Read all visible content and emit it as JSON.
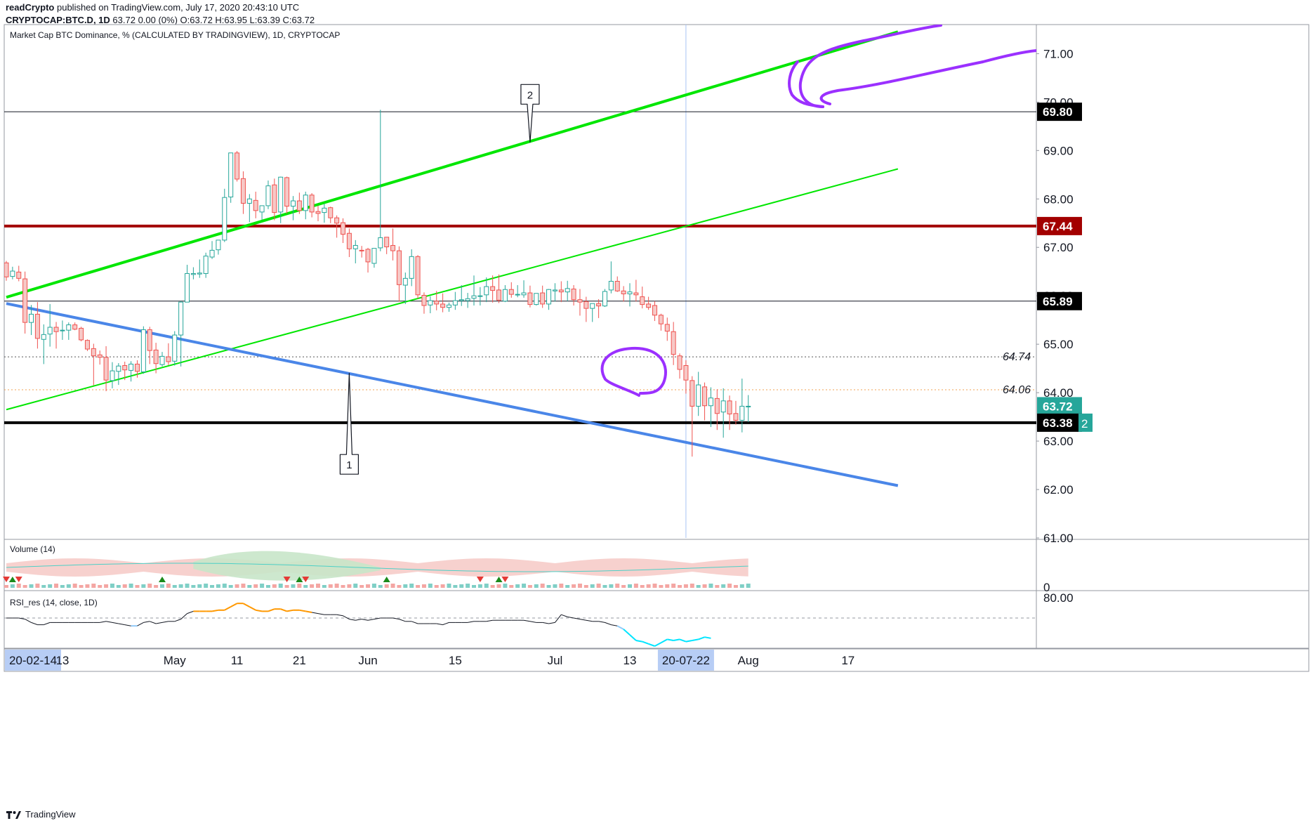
{
  "header": {
    "line1_author": "readCrypto",
    "line1_rest": "published on TradingView.com, July 17, 2020 20:43:10 UTC",
    "line2_symbol": "CRYPTOCAP:BTC.D, 1D",
    "line2_quote": "63.72 0.00 (0%) O:63.72 H:63.95 L:63.39 C:63.72"
  },
  "footer": {
    "brand": "TradingView",
    "icon": "tradingview-logo-icon"
  },
  "colors": {
    "up": "#26a69a",
    "down": "#ef5350",
    "green_line": "#00e600",
    "blue_line": "#4a86e8",
    "red_level": "#a30000",
    "purple": "#9b30ff",
    "rsi_line": "#131722",
    "rsi_over": "#ff9800",
    "rsi_under": "#00e5ff"
  },
  "chart_data": {
    "type": "candlestick",
    "title": "Market Cap BTC Dominance, % (CALCULATED BY TRADINGVIEW), 1D, CRYPTOCAP",
    "ylim": [
      61.0,
      71.6
    ],
    "y_ticks": [
      "61.00",
      "62.00",
      "63.00",
      "64.00",
      "65.00",
      "66.00",
      "67.00",
      "68.00",
      "69.00",
      "70.00",
      "71.00"
    ],
    "x_ticks": [
      {
        "label": "20-02-14",
        "highlight": true,
        "day": 0
      },
      {
        "label": "13",
        "day": 9
      },
      {
        "label": "May",
        "day": 27
      },
      {
        "label": "11",
        "day": 37
      },
      {
        "label": "21",
        "day": 47
      },
      {
        "label": "Jun",
        "day": 58
      },
      {
        "label": "15",
        "day": 72
      },
      {
        "label": "Jul",
        "day": 88
      },
      {
        "label": "13",
        "day": 100
      },
      {
        "label": "20-07-22",
        "highlight": true,
        "day": 109
      },
      {
        "label": "Aug",
        "day": 119
      },
      {
        "label": "17",
        "day": 135
      }
    ],
    "price_labels": [
      {
        "text": "69.80",
        "value": 69.8,
        "style": "dark"
      },
      {
        "text": "67.44",
        "value": 67.44,
        "style": "red"
      },
      {
        "text": "65.89",
        "value": 65.89,
        "style": "dark"
      },
      {
        "text": "63.72",
        "value": 63.72,
        "style": "teal"
      },
      {
        "text": "63.38",
        "value": 63.38,
        "style": "dark"
      }
    ],
    "edge_label": "2",
    "plain_levels": [
      {
        "text": "64.74",
        "value": 64.74
      },
      {
        "text": "64.06",
        "value": 64.06
      }
    ],
    "horizontal_lines": [
      {
        "value": 69.8,
        "color": "#131722",
        "width": 1
      },
      {
        "value": 67.44,
        "color": "#a30000",
        "width": 4
      },
      {
        "value": 65.89,
        "color": "#131722",
        "width": 1
      },
      {
        "value": 64.74,
        "color": "#555555",
        "width": 1,
        "dash": true
      },
      {
        "value": 64.06,
        "color": "#f0a050",
        "width": 1,
        "dash": true
      },
      {
        "value": 63.38,
        "color": "#000000",
        "width": 4
      }
    ],
    "trendlines": [
      {
        "from": [
          0,
          65.97
        ],
        "to": [
          143,
          71.45
        ],
        "color": "#00e600",
        "width": 4
      },
      {
        "from": [
          0,
          63.65
        ],
        "to": [
          143,
          68.62
        ],
        "color": "#00e600",
        "width": 2
      },
      {
        "from": [
          0,
          65.84
        ],
        "to": [
          143,
          62.08
        ],
        "color": "#4a86e8",
        "width": 4
      }
    ],
    "vertical_line_day": 109,
    "callouts": [
      {
        "text": "1",
        "tip": [
          55,
          64.4
        ],
        "box": [
          55,
          62.52
        ]
      },
      {
        "text": "2",
        "tip": [
          84,
          69.17
        ],
        "box": [
          84,
          70.16
        ]
      }
    ],
    "candles": [
      {
        "o": 66.68,
        "h": 66.72,
        "l": 66.31,
        "c": 66.39
      },
      {
        "o": 66.4,
        "h": 66.6,
        "l": 66.34,
        "c": 66.51
      },
      {
        "o": 66.49,
        "h": 66.62,
        "l": 66.3,
        "c": 66.36
      },
      {
        "o": 66.35,
        "h": 66.5,
        "l": 65.22,
        "c": 65.45
      },
      {
        "o": 65.45,
        "h": 65.81,
        "l": 65.19,
        "c": 65.62
      },
      {
        "o": 65.62,
        "h": 65.87,
        "l": 64.91,
        "c": 65.12
      },
      {
        "o": 65.1,
        "h": 65.41,
        "l": 64.59,
        "c": 65.2
      },
      {
        "o": 65.21,
        "h": 65.83,
        "l": 64.95,
        "c": 65.35
      },
      {
        "o": 65.35,
        "h": 65.46,
        "l": 64.91,
        "c": 65.26
      },
      {
        "o": 65.28,
        "h": 65.49,
        "l": 65.09,
        "c": 65.29
      },
      {
        "o": 65.29,
        "h": 65.45,
        "l": 65.09,
        "c": 65.4
      },
      {
        "o": 65.4,
        "h": 65.45,
        "l": 65.29,
        "c": 65.31
      },
      {
        "o": 65.33,
        "h": 65.36,
        "l": 65.06,
        "c": 65.09
      },
      {
        "o": 65.08,
        "h": 65.1,
        "l": 64.86,
        "c": 64.9
      },
      {
        "o": 64.91,
        "h": 65.01,
        "l": 64.15,
        "c": 64.76
      },
      {
        "o": 64.78,
        "h": 64.87,
        "l": 64.58,
        "c": 64.73
      },
      {
        "o": 64.73,
        "h": 64.96,
        "l": 64.03,
        "c": 64.26
      },
      {
        "o": 64.25,
        "h": 64.63,
        "l": 64.09,
        "c": 64.45
      },
      {
        "o": 64.44,
        "h": 64.61,
        "l": 64.16,
        "c": 64.55
      },
      {
        "o": 64.56,
        "h": 64.64,
        "l": 64.26,
        "c": 64.47
      },
      {
        "o": 64.46,
        "h": 64.65,
        "l": 64.23,
        "c": 64.59
      },
      {
        "o": 64.59,
        "h": 64.67,
        "l": 64.31,
        "c": 64.44
      },
      {
        "o": 64.43,
        "h": 65.37,
        "l": 64.39,
        "c": 65.3
      },
      {
        "o": 65.3,
        "h": 65.36,
        "l": 64.59,
        "c": 64.87
      },
      {
        "o": 64.88,
        "h": 65.03,
        "l": 64.4,
        "c": 64.6
      },
      {
        "o": 64.58,
        "h": 64.84,
        "l": 64.54,
        "c": 64.75
      },
      {
        "o": 64.74,
        "h": 65.02,
        "l": 64.57,
        "c": 64.64
      },
      {
        "o": 64.65,
        "h": 65.27,
        "l": 64.56,
        "c": 65.19
      },
      {
        "o": 65.19,
        "h": 65.89,
        "l": 64.54,
        "c": 65.87
      },
      {
        "o": 65.87,
        "h": 66.64,
        "l": 65.92,
        "c": 66.46
      },
      {
        "o": 66.44,
        "h": 66.59,
        "l": 66.34,
        "c": 66.46
      },
      {
        "o": 66.45,
        "h": 66.75,
        "l": 66.37,
        "c": 66.47
      },
      {
        "o": 66.46,
        "h": 66.89,
        "l": 66.37,
        "c": 66.82
      },
      {
        "o": 66.8,
        "h": 67.13,
        "l": 66.76,
        "c": 66.94
      },
      {
        "o": 66.95,
        "h": 67.06,
        "l": 66.85,
        "c": 67.15
      },
      {
        "o": 67.15,
        "h": 68.21,
        "l": 67.11,
        "c": 68.03
      },
      {
        "o": 68.04,
        "h": 68.95,
        "l": 67.92,
        "c": 68.95
      },
      {
        "o": 68.95,
        "h": 68.99,
        "l": 68.36,
        "c": 68.41
      },
      {
        "o": 68.42,
        "h": 68.57,
        "l": 67.69,
        "c": 67.91
      },
      {
        "o": 67.91,
        "h": 68.1,
        "l": 67.52,
        "c": 68.0
      },
      {
        "o": 67.97,
        "h": 68.15,
        "l": 67.6,
        "c": 67.76
      },
      {
        "o": 67.73,
        "h": 67.82,
        "l": 67.57,
        "c": 67.86
      },
      {
        "o": 67.86,
        "h": 68.38,
        "l": 67.79,
        "c": 68.27
      },
      {
        "o": 68.29,
        "h": 68.42,
        "l": 67.56,
        "c": 67.72
      },
      {
        "o": 67.73,
        "h": 68.46,
        "l": 67.5,
        "c": 68.45
      },
      {
        "o": 68.44,
        "h": 68.46,
        "l": 67.7,
        "c": 67.85
      },
      {
        "o": 67.85,
        "h": 68.06,
        "l": 67.56,
        "c": 67.96
      },
      {
        "o": 67.96,
        "h": 68.13,
        "l": 67.69,
        "c": 67.76
      },
      {
        "o": 67.76,
        "h": 68.15,
        "l": 67.58,
        "c": 68.08
      },
      {
        "o": 68.08,
        "h": 68.12,
        "l": 67.62,
        "c": 67.73
      },
      {
        "o": 67.74,
        "h": 67.86,
        "l": 67.54,
        "c": 67.7
      },
      {
        "o": 67.72,
        "h": 67.9,
        "l": 67.51,
        "c": 67.81
      },
      {
        "o": 67.82,
        "h": 67.84,
        "l": 67.5,
        "c": 67.61
      },
      {
        "o": 67.61,
        "h": 67.66,
        "l": 67.2,
        "c": 67.5
      },
      {
        "o": 67.51,
        "h": 67.6,
        "l": 67.09,
        "c": 67.27
      },
      {
        "o": 67.29,
        "h": 67.39,
        "l": 66.8,
        "c": 66.97
      },
      {
        "o": 66.97,
        "h": 67.15,
        "l": 66.67,
        "c": 67.04
      },
      {
        "o": 66.94,
        "h": 67.03,
        "l": 66.79,
        "c": 66.93
      },
      {
        "o": 66.96,
        "h": 66.99,
        "l": 66.48,
        "c": 66.7
      },
      {
        "o": 66.67,
        "h": 66.98,
        "l": 66.58,
        "c": 66.98
      },
      {
        "o": 66.99,
        "h": 69.84,
        "l": 66.92,
        "c": 67.2
      },
      {
        "o": 67.21,
        "h": 67.21,
        "l": 66.86,
        "c": 67.01
      },
      {
        "o": 67.04,
        "h": 67.39,
        "l": 66.73,
        "c": 66.93
      },
      {
        "o": 66.93,
        "h": 67.02,
        "l": 65.88,
        "c": 66.23
      },
      {
        "o": 66.22,
        "h": 66.48,
        "l": 65.83,
        "c": 66.36
      },
      {
        "o": 66.36,
        "h": 66.96,
        "l": 66.2,
        "c": 66.81
      },
      {
        "o": 66.81,
        "h": 66.84,
        "l": 65.94,
        "c": 66.02
      },
      {
        "o": 66.01,
        "h": 66.07,
        "l": 65.63,
        "c": 65.8
      },
      {
        "o": 65.81,
        "h": 65.99,
        "l": 65.64,
        "c": 65.9
      },
      {
        "o": 65.89,
        "h": 66.1,
        "l": 65.7,
        "c": 65.83
      },
      {
        "o": 65.83,
        "h": 66.05,
        "l": 65.66,
        "c": 65.76
      },
      {
        "o": 65.76,
        "h": 65.86,
        "l": 65.67,
        "c": 65.81
      },
      {
        "o": 65.81,
        "h": 66.08,
        "l": 65.71,
        "c": 65.9
      },
      {
        "o": 65.9,
        "h": 66.22,
        "l": 65.79,
        "c": 65.92
      },
      {
        "o": 65.9,
        "h": 66.06,
        "l": 65.75,
        "c": 65.94
      },
      {
        "o": 65.95,
        "h": 66.42,
        "l": 65.8,
        "c": 66.0
      },
      {
        "o": 66.0,
        "h": 66.18,
        "l": 65.8,
        "c": 66.0
      },
      {
        "o": 66.02,
        "h": 66.38,
        "l": 65.87,
        "c": 66.19
      },
      {
        "o": 66.19,
        "h": 66.42,
        "l": 65.86,
        "c": 66.11
      },
      {
        "o": 66.12,
        "h": 66.44,
        "l": 65.85,
        "c": 65.91
      },
      {
        "o": 65.89,
        "h": 66.22,
        "l": 65.87,
        "c": 66.13
      },
      {
        "o": 66.13,
        "h": 66.28,
        "l": 65.96,
        "c": 66.03
      },
      {
        "o": 66.02,
        "h": 66.22,
        "l": 65.97,
        "c": 66.03
      },
      {
        "o": 66.02,
        "h": 66.32,
        "l": 65.96,
        "c": 66.06
      },
      {
        "o": 66.06,
        "h": 66.21,
        "l": 65.76,
        "c": 65.82
      },
      {
        "o": 65.82,
        "h": 66.04,
        "l": 65.8,
        "c": 66.05
      },
      {
        "o": 66.06,
        "h": 66.21,
        "l": 65.75,
        "c": 65.83
      },
      {
        "o": 65.83,
        "h": 66.14,
        "l": 65.71,
        "c": 66.13
      },
      {
        "o": 66.1,
        "h": 66.26,
        "l": 65.88,
        "c": 66.12
      },
      {
        "o": 66.12,
        "h": 66.3,
        "l": 65.87,
        "c": 66.08
      },
      {
        "o": 66.08,
        "h": 66.31,
        "l": 65.89,
        "c": 66.15
      },
      {
        "o": 66.14,
        "h": 66.22,
        "l": 65.8,
        "c": 65.92
      },
      {
        "o": 65.92,
        "h": 66.14,
        "l": 65.59,
        "c": 65.87
      },
      {
        "o": 65.88,
        "h": 65.98,
        "l": 65.46,
        "c": 65.74
      },
      {
        "o": 65.74,
        "h": 65.82,
        "l": 65.46,
        "c": 65.84
      },
      {
        "o": 65.84,
        "h": 65.93,
        "l": 65.54,
        "c": 65.79
      },
      {
        "o": 65.79,
        "h": 66.14,
        "l": 65.77,
        "c": 66.09
      },
      {
        "o": 66.12,
        "h": 66.71,
        "l": 66.05,
        "c": 66.3
      },
      {
        "o": 66.3,
        "h": 66.4,
        "l": 66.08,
        "c": 66.1
      },
      {
        "o": 66.1,
        "h": 66.2,
        "l": 65.88,
        "c": 66.04
      },
      {
        "o": 66.04,
        "h": 66.26,
        "l": 65.78,
        "c": 66.08
      },
      {
        "o": 66.06,
        "h": 66.33,
        "l": 65.88,
        "c": 66.02
      },
      {
        "o": 65.98,
        "h": 66.19,
        "l": 65.74,
        "c": 65.82
      },
      {
        "o": 65.83,
        "h": 65.98,
        "l": 65.71,
        "c": 65.76
      },
      {
        "o": 65.8,
        "h": 65.89,
        "l": 65.48,
        "c": 65.6
      },
      {
        "o": 65.6,
        "h": 65.63,
        "l": 65.28,
        "c": 65.42
      },
      {
        "o": 65.41,
        "h": 65.55,
        "l": 65.07,
        "c": 65.27
      },
      {
        "o": 65.26,
        "h": 65.46,
        "l": 64.57,
        "c": 64.79
      },
      {
        "o": 64.76,
        "h": 64.81,
        "l": 64.29,
        "c": 64.48
      },
      {
        "o": 64.56,
        "h": 64.67,
        "l": 63.98,
        "c": 64.26
      },
      {
        "o": 64.25,
        "h": 64.34,
        "l": 62.68,
        "c": 63.72
      },
      {
        "o": 63.72,
        "h": 64.43,
        "l": 63.52,
        "c": 64.16
      },
      {
        "o": 64.12,
        "h": 64.21,
        "l": 63.43,
        "c": 63.73
      },
      {
        "o": 63.73,
        "h": 64.11,
        "l": 63.29,
        "c": 63.89
      },
      {
        "o": 63.88,
        "h": 64.07,
        "l": 63.23,
        "c": 63.57
      },
      {
        "o": 63.6,
        "h": 64.09,
        "l": 63.07,
        "c": 63.83
      },
      {
        "o": 63.83,
        "h": 63.94,
        "l": 63.23,
        "c": 63.56
      },
      {
        "o": 63.57,
        "h": 63.83,
        "l": 63.34,
        "c": 63.43
      },
      {
        "o": 63.43,
        "h": 64.29,
        "l": 63.18,
        "c": 63.72
      },
      {
        "o": 63.72,
        "h": 63.95,
        "l": 63.39,
        "c": 63.72
      }
    ],
    "volume_panel": {
      "title": "Volume (14)",
      "y_ticks": [
        "0"
      ],
      "up_markers": [
        1,
        25,
        47,
        61,
        79
      ],
      "down_markers": [
        0,
        2,
        45,
        48,
        76,
        80
      ]
    },
    "rsi_panel": {
      "title": "RSI_res (14, close, 1D)",
      "y_ticks": [
        "80.00"
      ],
      "ylim": [
        0,
        100
      ],
      "midline": 50,
      "values": [
        50,
        50,
        50,
        49,
        46,
        44,
        44,
        46,
        46,
        46,
        46,
        46,
        46,
        46,
        46,
        46,
        47,
        46,
        45,
        44,
        43,
        43,
        46,
        47,
        45,
        46,
        47,
        47,
        49,
        54,
        56,
        56,
        56,
        56,
        57,
        57,
        60,
        63,
        63,
        60,
        57,
        56,
        56,
        58,
        58,
        56,
        57,
        57,
        56,
        55,
        54,
        53,
        53,
        53,
        52,
        49,
        48,
        49,
        48,
        49,
        50,
        50,
        50,
        49,
        47,
        47,
        45,
        45,
        45,
        45,
        44,
        46,
        46,
        46,
        46,
        47,
        47,
        47,
        48,
        48,
        48,
        48,
        48,
        48,
        47,
        46,
        46,
        45,
        46,
        53,
        51,
        50,
        49,
        48,
        47,
        47,
        46,
        44,
        43,
        40,
        35,
        30,
        29,
        27,
        25,
        28,
        31,
        30,
        31,
        29,
        30,
        31,
        33,
        32
      ]
    }
  }
}
